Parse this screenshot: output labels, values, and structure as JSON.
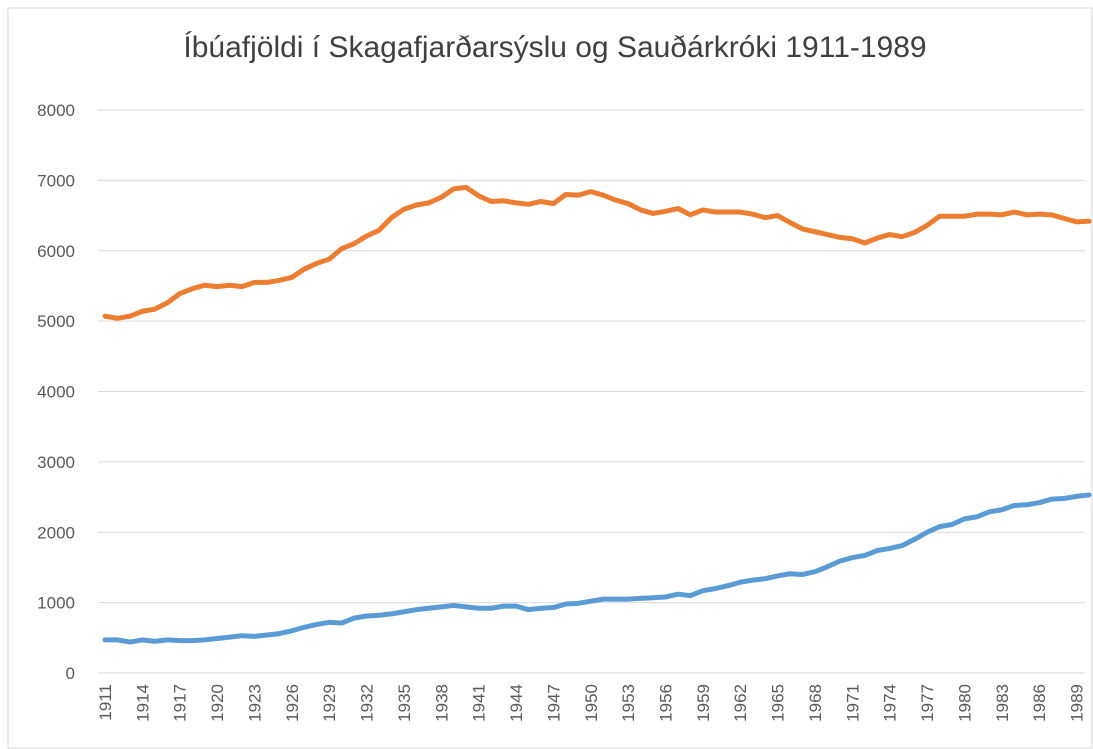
{
  "chart_data": {
    "type": "line",
    "title": "Íbúafjöldi í Skagafjarðarsýslu og Sauðárkróki 1911-1989",
    "categories": [
      "1911",
      null,
      null,
      "1914",
      null,
      null,
      "1917",
      null,
      null,
      "1920",
      null,
      null,
      "1923",
      null,
      null,
      "1926",
      null,
      null,
      "1929",
      null,
      null,
      "1932",
      null,
      null,
      "1935",
      null,
      null,
      "1938",
      null,
      null,
      "1941",
      null,
      null,
      "1944",
      null,
      null,
      "1947",
      null,
      null,
      "1950",
      null,
      null,
      "1953",
      null,
      null,
      "1956",
      null,
      null,
      "1959",
      null,
      null,
      "1962",
      null,
      null,
      "1965",
      null,
      null,
      "1968",
      null,
      null,
      "1971",
      null,
      null,
      "1974",
      null,
      null,
      "1977",
      null,
      null,
      "1980",
      null,
      null,
      "1983",
      null,
      null,
      "1986",
      null,
      null,
      "1989",
      null
    ],
    "series": [
      {
        "color": "#ed7d31",
        "values": [
          5070,
          5040,
          5070,
          5140,
          5170,
          5260,
          5390,
          5460,
          5510,
          5490,
          5510,
          5490,
          5550,
          5550,
          5580,
          5620,
          5740,
          5820,
          5880,
          6030,
          6100,
          6210,
          6290,
          6470,
          6590,
          6650,
          6680,
          6760,
          6880,
          6900,
          6780,
          6700,
          6710,
          6680,
          6660,
          6700,
          6670,
          6800,
          6790,
          6840,
          6790,
          6720,
          6670,
          6580,
          6530,
          6560,
          6600,
          6510,
          6580,
          6550,
          6550,
          6550,
          6520,
          6470,
          6500,
          6400,
          6310,
          6270,
          6230,
          6190,
          6170,
          6110,
          6180,
          6230,
          6200,
          6260,
          6360,
          6490,
          6490,
          6490,
          6520,
          6520,
          6510,
          6550,
          6510,
          6520,
          6510,
          6460,
          6410,
          6420
        ]
      },
      {
        "color": "#5b9bd5",
        "values": [
          470,
          470,
          440,
          470,
          450,
          470,
          460,
          460,
          470,
          490,
          510,
          530,
          520,
          540,
          560,
          600,
          650,
          690,
          720,
          710,
          780,
          810,
          820,
          840,
          870,
          900,
          920,
          940,
          960,
          940,
          920,
          920,
          950,
          950,
          900,
          920,
          930,
          980,
          990,
          1020,
          1050,
          1050,
          1050,
          1060,
          1070,
          1080,
          1120,
          1100,
          1170,
          1200,
          1240,
          1290,
          1320,
          1340,
          1380,
          1410,
          1400,
          1440,
          1510,
          1590,
          1640,
          1670,
          1740,
          1770,
          1810,
          1900,
          2000,
          2080,
          2110,
          2190,
          2220,
          2290,
          2320,
          2380,
          2390,
          2420,
          2470,
          2480,
          2510,
          2530
        ]
      }
    ],
    "ylim": [
      0,
      8000
    ],
    "yticks": [
      0,
      1000,
      2000,
      3000,
      4000,
      5000,
      6000,
      7000,
      8000
    ],
    "grid": true
  }
}
